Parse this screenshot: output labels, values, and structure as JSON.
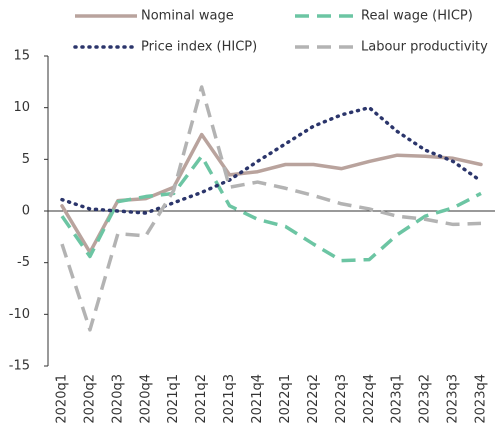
{
  "chart_data": {
    "type": "line",
    "categories": [
      "2020q1",
      "2020q2",
      "2020q3",
      "2020q4",
      "2021q1",
      "2021q2",
      "2021q3",
      "2021q4",
      "2022q1",
      "2022q2",
      "2022q3",
      "2022q4",
      "2023q1",
      "2023q2",
      "2023q3",
      "2023q4"
    ],
    "series": [
      {
        "name": "Nominal wage",
        "color": "#b9a39d",
        "dash": "solid",
        "values": [
          0.5,
          -4,
          1,
          1.2,
          2.3,
          7.4,
          3.5,
          3.8,
          4.5,
          4.5,
          4.1,
          4.8,
          5.4,
          5.3,
          5.1,
          4.5
        ]
      },
      {
        "name": "Real wage (HICP)",
        "color": "#6cc5a3",
        "dash": "dashed",
        "values": [
          -0.5,
          -4.4,
          0.9,
          1.4,
          1.7,
          5.3,
          0.5,
          -0.8,
          -1.5,
          -3.2,
          -4.8,
          -4.7,
          -2.3,
          -0.5,
          0.3,
          1.7
        ]
      },
      {
        "name": "Price index (HICP)",
        "color": "#2b356b",
        "dash": "dotted",
        "values": [
          1.1,
          0.2,
          0,
          -0.2,
          0.8,
          1.8,
          3,
          4.8,
          6.5,
          8.2,
          9.3,
          10,
          7.7,
          5.9,
          4.8,
          2.9
        ]
      },
      {
        "name": "Labour productivity",
        "color": "#b3b3b3",
        "dash": "dashed",
        "values": [
          -3.2,
          -11.5,
          -2.2,
          -2.4,
          2,
          12,
          2.3,
          2.8,
          2.2,
          1.5,
          0.7,
          0.2,
          -0.5,
          -0.8,
          -1.3,
          -1.2
        ]
      }
    ],
    "ylim": [
      -15,
      15
    ],
    "yticks": [
      -15,
      -10,
      -5,
      0,
      5,
      10,
      15
    ],
    "legend": "top",
    "grid": false
  }
}
